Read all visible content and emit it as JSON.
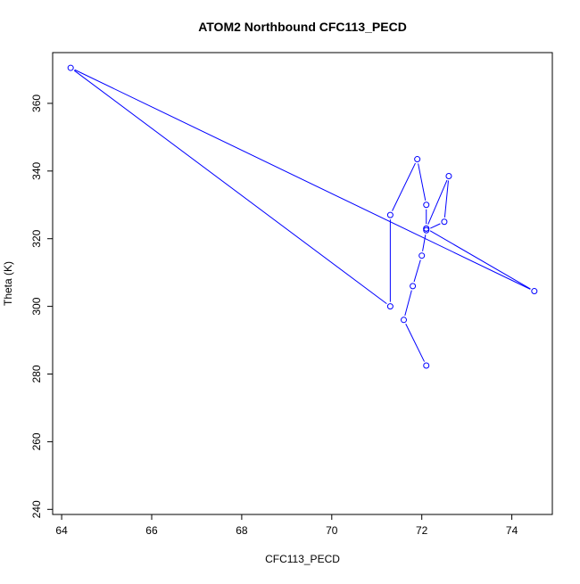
{
  "chart_data": {
    "type": "scatter",
    "title": "ATOM2 Northbound CFC113_PECD",
    "xlabel": "CFC113_PECD",
    "ylabel": "Theta (K)",
    "xlim": [
      63.8,
      74.9
    ],
    "ylim": [
      238.5,
      375.0
    ],
    "xticks": [
      64,
      66,
      68,
      70,
      72,
      74
    ],
    "yticks": [
      240,
      260,
      280,
      300,
      320,
      340,
      360
    ],
    "grid": false,
    "legend": "none",
    "connected": true,
    "series": [
      {
        "color": "#0000ff",
        "marker": "open-circle",
        "points": [
          {
            "x": 72.1,
            "y": 282.5
          },
          {
            "x": 71.6,
            "y": 296.0
          },
          {
            "x": 71.8,
            "y": 306.0
          },
          {
            "x": 72.0,
            "y": 315.0
          },
          {
            "x": 72.1,
            "y": 322.5
          },
          {
            "x": 72.5,
            "y": 325.0
          },
          {
            "x": 72.6,
            "y": 338.5
          },
          {
            "x": 72.1,
            "y": 323.0
          },
          {
            "x": 74.5,
            "y": 304.5
          },
          {
            "x": 64.2,
            "y": 370.5
          },
          {
            "x": 71.3,
            "y": 300.0
          },
          {
            "x": 71.3,
            "y": 327.0
          },
          {
            "x": 71.9,
            "y": 343.5
          },
          {
            "x": 72.1,
            "y": 330.0
          },
          {
            "x": 72.1,
            "y": 323.0
          }
        ]
      }
    ]
  }
}
